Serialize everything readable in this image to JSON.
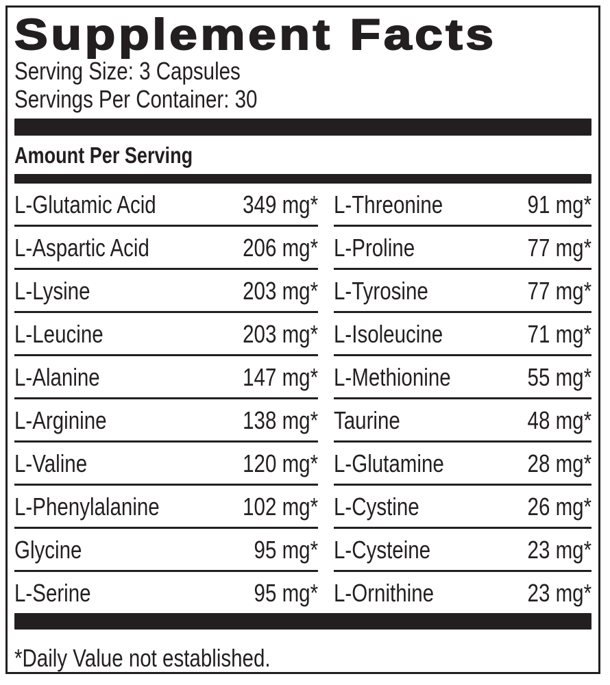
{
  "label": {
    "title": "Supplement Facts",
    "serving_size": "Serving Size: 3 Capsules",
    "servings_per_container": "Servings Per Container: 30",
    "amount_per_serving_heading": "Amount Per Serving",
    "footnote": "*Daily Value not established.",
    "colors": {
      "text": "#231f20",
      "divider_bar": "#231f20",
      "background": "#ffffff"
    }
  },
  "table": {
    "left": [
      {
        "name": "L-Glutamic Acid",
        "amount": "349 mg*"
      },
      {
        "name": "L-Aspartic Acid",
        "amount": "206 mg*"
      },
      {
        "name": "L-Lysine",
        "amount": "203 mg*"
      },
      {
        "name": "L-Leucine",
        "amount": "203 mg*"
      },
      {
        "name": "L-Alanine",
        "amount": "147 mg*"
      },
      {
        "name": "L-Arginine",
        "amount": "138 mg*"
      },
      {
        "name": "L-Valine",
        "amount": "120 mg*"
      },
      {
        "name": "L-Phenylalanine",
        "amount": "102 mg*"
      },
      {
        "name": "Glycine",
        "amount": "95 mg*"
      },
      {
        "name": "L-Serine",
        "amount": "95 mg*"
      }
    ],
    "right": [
      {
        "name": "L-Threonine",
        "amount": "91 mg*"
      },
      {
        "name": "L-Proline",
        "amount": "77 mg*"
      },
      {
        "name": "L-Tyrosine",
        "amount": "77 mg*"
      },
      {
        "name": "L-Isoleucine",
        "amount": "71 mg*"
      },
      {
        "name": "L-Methionine",
        "amount": "55 mg*"
      },
      {
        "name": "Taurine",
        "amount": "48 mg*"
      },
      {
        "name": "L-Glutamine",
        "amount": "28 mg*"
      },
      {
        "name": "L-Cystine",
        "amount": "26 mg*"
      },
      {
        "name": "L-Cysteine",
        "amount": "23 mg*"
      },
      {
        "name": "L-Ornithine",
        "amount": "23 mg*"
      }
    ]
  }
}
